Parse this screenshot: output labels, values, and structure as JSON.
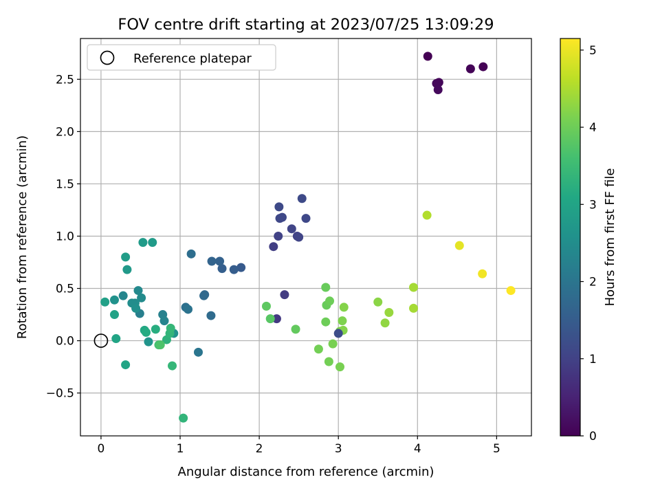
{
  "chart_data": {
    "type": "scatter",
    "title": "FOV centre drift starting at 2023/07/25 13:09:29",
    "xlabel": "Angular distance from reference (arcmin)",
    "ylabel": "Rotation from reference (arcmin)",
    "colorbar_label": "Hours from first FF file",
    "xlim": [
      -0.26,
      5.44
    ],
    "ylim": [
      -0.91,
      2.89
    ],
    "x_ticks": [
      0,
      1,
      2,
      3,
      4,
      5
    ],
    "x_tick_labels": [
      "0",
      "1",
      "2",
      "3",
      "4",
      "5"
    ],
    "y_ticks": [
      -0.5,
      0.0,
      0.5,
      1.0,
      1.5,
      2.0,
      2.5
    ],
    "y_tick_labels": [
      "−0.5",
      "0.0",
      "0.5",
      "1.0",
      "1.5",
      "2.0",
      "2.5"
    ],
    "colorbar_range": [
      0,
      5.15
    ],
    "colorbar_ticks": [
      0,
      1,
      2,
      3,
      4,
      5
    ],
    "colorbar_tick_labels": [
      "0",
      "1",
      "2",
      "3",
      "4",
      "5"
    ],
    "colormap": "viridis",
    "grid": true,
    "legend": {
      "position": "upper-left",
      "label": "Reference platepar",
      "marker": "open-circle"
    },
    "reference_point": {
      "x": 0.0,
      "y": 0.0
    },
    "points": [
      {
        "x": 4.13,
        "y": 2.72,
        "h": 0.0
      },
      {
        "x": 4.83,
        "y": 2.62,
        "h": 0.02
      },
      {
        "x": 4.67,
        "y": 2.6,
        "h": 0.05
      },
      {
        "x": 4.27,
        "y": 2.47,
        "h": 0.08
      },
      {
        "x": 4.24,
        "y": 2.46,
        "h": 0.1
      },
      {
        "x": 4.26,
        "y": 2.4,
        "h": 0.12
      },
      {
        "x": 2.22,
        "y": 0.21,
        "h": 0.85
      },
      {
        "x": 2.32,
        "y": 0.44,
        "h": 0.9
      },
      {
        "x": 2.18,
        "y": 0.9,
        "h": 0.95
      },
      {
        "x": 2.24,
        "y": 1.0,
        "h": 1.0
      },
      {
        "x": 2.48,
        "y": 1.0,
        "h": 1.0
      },
      {
        "x": 2.5,
        "y": 0.99,
        "h": 1.05
      },
      {
        "x": 2.41,
        "y": 1.07,
        "h": 1.05
      },
      {
        "x": 2.26,
        "y": 1.17,
        "h": 1.1
      },
      {
        "x": 2.29,
        "y": 1.18,
        "h": 1.1
      },
      {
        "x": 2.59,
        "y": 1.17,
        "h": 1.1
      },
      {
        "x": 2.25,
        "y": 1.28,
        "h": 1.15
      },
      {
        "x": 2.54,
        "y": 1.36,
        "h": 1.15
      },
      {
        "x": 1.77,
        "y": 0.7,
        "h": 1.45
      },
      {
        "x": 1.68,
        "y": 0.68,
        "h": 1.5
      },
      {
        "x": 1.53,
        "y": 0.69,
        "h": 1.55
      },
      {
        "x": 1.5,
        "y": 0.76,
        "h": 1.6
      },
      {
        "x": 1.4,
        "y": 0.76,
        "h": 1.65
      },
      {
        "x": 1.14,
        "y": 0.83,
        "h": 1.85
      },
      {
        "x": 1.31,
        "y": 0.44,
        "h": 1.7
      },
      {
        "x": 1.3,
        "y": 0.43,
        "h": 1.75
      },
      {
        "x": 1.39,
        "y": 0.24,
        "h": 1.8
      },
      {
        "x": 1.07,
        "y": 0.32,
        "h": 1.9
      },
      {
        "x": 1.1,
        "y": 0.3,
        "h": 1.95
      },
      {
        "x": 1.23,
        "y": -0.11,
        "h": 2.0
      },
      {
        "x": 0.49,
        "y": 0.26,
        "h": 2.2
      },
      {
        "x": 0.78,
        "y": 0.25,
        "h": 2.25
      },
      {
        "x": 0.8,
        "y": 0.19,
        "h": 2.3
      },
      {
        "x": 0.28,
        "y": 0.43,
        "h": 2.35
      },
      {
        "x": 0.47,
        "y": 0.48,
        "h": 2.4
      },
      {
        "x": 0.51,
        "y": 0.41,
        "h": 2.45
      },
      {
        "x": 0.39,
        "y": 0.36,
        "h": 2.5
      },
      {
        "x": 0.43,
        "y": 0.36,
        "h": 2.5
      },
      {
        "x": 0.44,
        "y": 0.31,
        "h": 2.55
      },
      {
        "x": 0.17,
        "y": 0.39,
        "h": 2.6
      },
      {
        "x": 0.92,
        "y": 0.07,
        "h": 2.6
      },
      {
        "x": 0.6,
        "y": -0.01,
        "h": 2.65
      },
      {
        "x": 0.33,
        "y": 0.68,
        "h": 2.75
      },
      {
        "x": 0.53,
        "y": 0.94,
        "h": 2.8
      },
      {
        "x": 0.65,
        "y": 0.94,
        "h": 2.8
      },
      {
        "x": 0.31,
        "y": 0.8,
        "h": 2.85
      },
      {
        "x": 0.05,
        "y": 0.37,
        "h": 2.9
      },
      {
        "x": 0.17,
        "y": 0.25,
        "h": 2.95
      },
      {
        "x": 0.19,
        "y": 0.02,
        "h": 3.0
      },
      {
        "x": 0.31,
        "y": -0.23,
        "h": 3.0
      },
      {
        "x": 0.55,
        "y": 0.1,
        "h": 3.1
      },
      {
        "x": 0.57,
        "y": 0.08,
        "h": 3.15
      },
      {
        "x": 0.69,
        "y": 0.11,
        "h": 3.2
      },
      {
        "x": 0.83,
        "y": 0.01,
        "h": 3.3
      },
      {
        "x": 0.87,
        "y": 0.07,
        "h": 3.35
      },
      {
        "x": 0.88,
        "y": 0.12,
        "h": 3.4
      },
      {
        "x": 0.9,
        "y": -0.24,
        "h": 3.4
      },
      {
        "x": 1.04,
        "y": -0.74,
        "h": 3.35
      },
      {
        "x": 0.73,
        "y": -0.04,
        "h": 3.6
      },
      {
        "x": 0.75,
        "y": -0.04,
        "h": 3.7
      },
      {
        "x": 2.09,
        "y": 0.33,
        "h": 3.85
      },
      {
        "x": 2.14,
        "y": 0.21,
        "h": 3.8
      },
      {
        "x": 2.46,
        "y": 0.11,
        "h": 3.9
      },
      {
        "x": 2.84,
        "y": 0.51,
        "h": 3.95
      },
      {
        "x": 2.85,
        "y": 0.34,
        "h": 3.95
      },
      {
        "x": 2.89,
        "y": 0.38,
        "h": 4.0
      },
      {
        "x": 2.84,
        "y": 0.18,
        "h": 4.0
      },
      {
        "x": 2.75,
        "y": -0.08,
        "h": 4.05
      },
      {
        "x": 2.88,
        "y": -0.2,
        "h": 4.05
      },
      {
        "x": 2.93,
        "y": -0.03,
        "h": 4.1
      },
      {
        "x": 3.02,
        "y": -0.25,
        "h": 4.1
      },
      {
        "x": 3.02,
        "y": 0.09,
        "h": 4.15
      },
      {
        "x": 3.05,
        "y": 0.19,
        "h": 4.15
      },
      {
        "x": 3.06,
        "y": 0.1,
        "h": 4.2
      },
      {
        "x": 3.07,
        "y": 0.32,
        "h": 4.2
      },
      {
        "x": 3.5,
        "y": 0.37,
        "h": 4.25
      },
      {
        "x": 3.59,
        "y": 0.17,
        "h": 4.3
      },
      {
        "x": 3.64,
        "y": 0.27,
        "h": 4.35
      },
      {
        "x": 3.95,
        "y": 0.51,
        "h": 4.45
      },
      {
        "x": 3.95,
        "y": 0.31,
        "h": 4.45
      },
      {
        "x": 4.12,
        "y": 1.2,
        "h": 4.55
      },
      {
        "x": 4.53,
        "y": 0.91,
        "h": 4.95
      },
      {
        "x": 4.82,
        "y": 0.64,
        "h": 5.05
      },
      {
        "x": 5.18,
        "y": 0.48,
        "h": 5.15
      },
      {
        "x": 3.0,
        "y": 0.07,
        "h": 1.2
      }
    ]
  }
}
